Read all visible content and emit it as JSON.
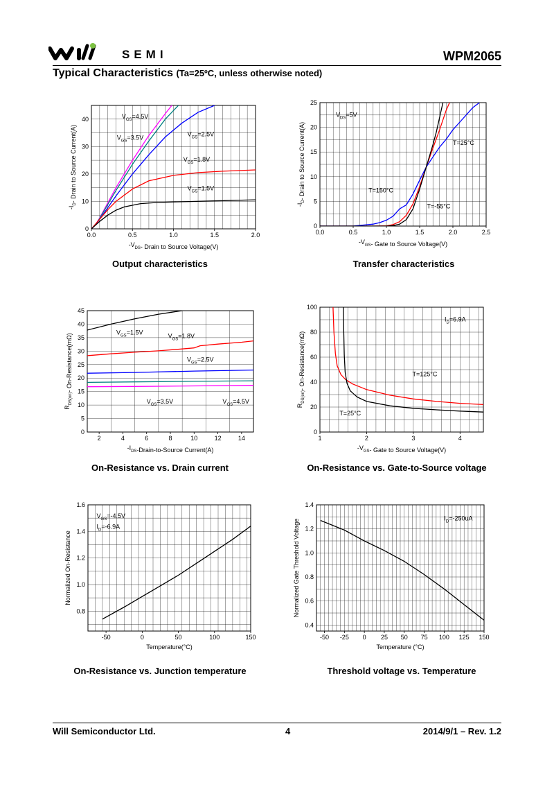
{
  "header": {
    "logo_text": "SEMI",
    "part_number": "WPM2065",
    "title": "Typical Characteristics",
    "title_note": "(Ta=25ºC, unless otherwise noted)"
  },
  "footer": {
    "company": "Will Semiconductor Ltd.",
    "page": "4",
    "date_rev": "2014/9/1 – Rev. 1.2"
  },
  "chart_data": [
    {
      "id": "output",
      "type": "line",
      "title": "Output characteristics",
      "xlabel": "-V_DS- Drain to Source Voltage(V)",
      "ylabel": "-I_D- Drain to Source Current(A)",
      "xlim": [
        0,
        2.0
      ],
      "ylim": [
        0,
        45
      ],
      "xticks": [
        0.0,
        0.5,
        1.0,
        1.5,
        2.0
      ],
      "xtick_labels": [
        "0.0",
        "0.5",
        "1.0",
        "1.5",
        "2.0"
      ],
      "yticks": [
        0,
        10,
        20,
        30,
        40
      ],
      "ytick_labels": [
        "0",
        "10",
        "20",
        "30",
        "40"
      ],
      "grid": true,
      "series": [
        {
          "name": "VGS=4.5V",
          "color": "#ff00ff",
          "x": [
            0,
            0.05,
            0.1,
            0.3,
            0.5,
            0.7,
            0.9,
            0.98
          ],
          "y": [
            0,
            1.5,
            4,
            15,
            25,
            34,
            42,
            45
          ]
        },
        {
          "name": "VGS=3.5V",
          "color": "#008080",
          "x": [
            0,
            0.05,
            0.1,
            0.3,
            0.5,
            0.7,
            0.9,
            1.06
          ],
          "y": [
            0,
            1.5,
            3.8,
            14,
            23.5,
            32,
            40,
            45
          ]
        },
        {
          "name": "VGS=2.5V",
          "color": "#0000ff",
          "x": [
            0,
            0.05,
            0.1,
            0.3,
            0.5,
            0.7,
            0.9,
            1.1,
            1.3,
            1.5
          ],
          "y": [
            0,
            1.5,
            3.5,
            12,
            20,
            27,
            33.5,
            38.5,
            42.5,
            45
          ]
        },
        {
          "name": "VGS=1.8V",
          "color": "#ff0000",
          "x": [
            0,
            0.1,
            0.2,
            0.3,
            0.5,
            0.7,
            1.0,
            1.3,
            1.6,
            2.0
          ],
          "y": [
            0,
            3.5,
            7,
            10,
            14.5,
            17.5,
            19.5,
            20.5,
            21,
            21.5
          ]
        },
        {
          "name": "VGS=1.5V",
          "color": "#000000",
          "x": [
            0,
            0.1,
            0.2,
            0.3,
            0.4,
            0.6,
            0.8,
            1.0,
            1.5,
            2.0
          ],
          "y": [
            0,
            2.7,
            5,
            6.8,
            8,
            9.2,
            9.6,
            9.8,
            10.2,
            10.6
          ]
        }
      ],
      "labels": [
        {
          "text": "VGS=4.5V",
          "x": 0.37,
          "y": 40.2
        },
        {
          "text": "VGS=3.5V",
          "x": 0.31,
          "y": 32.5
        },
        {
          "text": "VGS=2.5V",
          "x": 1.17,
          "y": 33.8
        },
        {
          "text": "VGS=1.8V",
          "x": 1.12,
          "y": 24.5
        },
        {
          "text": "VGS=1.5V",
          "x": 1.17,
          "y": 14.0
        }
      ]
    },
    {
      "id": "transfer",
      "type": "line",
      "title": "Transfer characteristics",
      "xlabel": "-V_GS- Gate to Source Voltage(V)",
      "ylabel": "-I_D- Drain to Source Current(A)",
      "xlim": [
        0,
        2.5
      ],
      "ylim": [
        0,
        25
      ],
      "xticks": [
        0.0,
        0.5,
        1.0,
        1.5,
        2.0,
        2.5
      ],
      "xtick_labels": [
        "0.0",
        "0.5",
        "1.0",
        "1.5",
        "2.0",
        "2.5"
      ],
      "yticks": [
        0,
        5,
        10,
        15,
        20,
        25
      ],
      "ytick_labels": [
        "0",
        "5",
        "10",
        "15",
        "20",
        "25"
      ],
      "grid": true,
      "series": [
        {
          "name": "T=25°C",
          "color": "#ff0000",
          "x": [
            0,
            0.8,
            1.0,
            1.1,
            1.2,
            1.3,
            1.4,
            1.5,
            1.6,
            1.7,
            1.8,
            1.9,
            1.95
          ],
          "y": [
            0,
            0,
            0.05,
            0.3,
            0.9,
            2.2,
            4.5,
            8,
            12,
            15.8,
            19.5,
            23.5,
            25
          ]
        },
        {
          "name": "T=150°C",
          "color": "#0000ff",
          "x": [
            0,
            0.5,
            0.8,
            0.9,
            1.0,
            1.1,
            1.2,
            1.3,
            1.4,
            1.5,
            1.6,
            1.7,
            1.8,
            1.9,
            2.0,
            2.1,
            2.2,
            2.3,
            2.4
          ],
          "y": [
            0,
            0,
            0.4,
            0.7,
            1.2,
            2,
            3.5,
            4.3,
            6.5,
            9.3,
            12,
            14,
            16,
            17.6,
            19.5,
            21,
            22.5,
            24,
            25
          ]
        },
        {
          "name": "T=-55°C",
          "color": "#000000",
          "x": [
            0,
            1.0,
            1.1,
            1.2,
            1.3,
            1.4,
            1.5,
            1.6,
            1.7,
            1.75,
            1.8,
            1.85
          ],
          "y": [
            0,
            0,
            0.1,
            0.4,
            1.3,
            3.5,
            7.5,
            12,
            16.5,
            19,
            22,
            25
          ]
        }
      ],
      "labels": [
        {
          "text": "VDS=5V",
          "x": 0.24,
          "y": 22.1
        },
        {
          "text": "T=25°C",
          "x": 2.0,
          "y": 16.4
        },
        {
          "text": "T=150°C",
          "x": 0.73,
          "y": 6.8
        },
        {
          "text": "T=-55°C",
          "x": 1.61,
          "y": 3.6
        }
      ]
    },
    {
      "id": "ron_id",
      "type": "line",
      "title": "On-Resistance vs. Drain current",
      "xlabel": "-I_DS-Drain-to-Source Current(A)",
      "ylabel": "R_DS(on)- On-Resistance(mΩ)",
      "xlim": [
        1,
        15
      ],
      "ylim": [
        0,
        45
      ],
      "xticks": [
        2,
        4,
        6,
        8,
        10,
        12,
        14
      ],
      "xtick_labels": [
        "2",
        "4",
        "6",
        "8",
        "10",
        "12",
        "14"
      ],
      "yticks": [
        0,
        5,
        10,
        15,
        20,
        25,
        30,
        35,
        40,
        45
      ],
      "ytick_labels": [
        "0",
        "5",
        "10",
        "15",
        "20",
        "25",
        "30",
        "35",
        "40",
        "45"
      ],
      "grid": true,
      "series": [
        {
          "name": "VGS=1.5V",
          "color": "#000000",
          "x": [
            1,
            3,
            5,
            7,
            9
          ],
          "y": [
            37.8,
            40,
            42,
            43.7,
            45
          ]
        },
        {
          "name": "VGS=1.8V",
          "color": "#ff0000",
          "x": [
            1,
            3,
            5,
            7,
            9,
            10,
            10.5,
            12,
            14,
            15
          ],
          "y": [
            28.3,
            29,
            29.6,
            30.1,
            30.8,
            31.2,
            32,
            32.6,
            33.3,
            33.8
          ]
        },
        {
          "name": "VGS=2.5V",
          "color": "#0000ff",
          "x": [
            1,
            5,
            10,
            15
          ],
          "y": [
            21.8,
            22.1,
            22.6,
            23
          ]
        },
        {
          "name": "VGS=3.5V",
          "color": "#008080",
          "x": [
            1,
            5,
            10,
            15
          ],
          "y": [
            18.4,
            18.6,
            18.8,
            19
          ]
        },
        {
          "name": "VGS=4.5V",
          "color": "#ff00ff",
          "x": [
            1,
            5,
            10,
            15
          ],
          "y": [
            16.8,
            16.9,
            17.1,
            17.3
          ]
        }
      ],
      "labels": [
        {
          "text": "VGS=1.5V",
          "x": 3.45,
          "y": 36.1
        },
        {
          "text": "VGS=1.8V",
          "x": 7.8,
          "y": 34.8
        },
        {
          "text": "VGS=2.5V",
          "x": 9.4,
          "y": 26.1
        },
        {
          "text": "VGS=3.5V",
          "x": 6.0,
          "y": 10.5
        },
        {
          "text": "VGS=4.5V",
          "x": 12.4,
          "y": 10.5
        }
      ]
    },
    {
      "id": "ron_vgs",
      "type": "line",
      "title": "On-Resistance vs. Gate-to-Source voltage",
      "xlabel": "-V_GS- Gate to Source Voltage(V)",
      "ylabel": "R_DS(on)- On-Resistance(mΩ)",
      "xlim": [
        1,
        4.5
      ],
      "ylim": [
        0,
        100
      ],
      "xticks": [
        1,
        2,
        3,
        4
      ],
      "xtick_labels": [
        "1",
        "2",
        "3",
        "4"
      ],
      "yticks": [
        0,
        20,
        40,
        60,
        80,
        100
      ],
      "ytick_labels": [
        "0",
        "20",
        "40",
        "60",
        "80",
        "100"
      ],
      "grid": true,
      "series": [
        {
          "name": "T=125°C",
          "color": "#ff0000",
          "x": [
            1.28,
            1.3,
            1.33,
            1.37,
            1.45,
            1.55,
            1.7,
            2.0,
            2.5,
            3.0,
            3.5,
            4.0,
            4.5
          ],
          "y": [
            100,
            80,
            63,
            53,
            46,
            42,
            38.5,
            34,
            29.5,
            26.5,
            24.5,
            23,
            22
          ]
        },
        {
          "name": "T=25°C",
          "color": "#000000",
          "x": [
            1.5,
            1.51,
            1.52,
            1.54,
            1.58,
            1.65,
            1.8,
            2.0,
            2.5,
            3.0,
            3.5,
            4.0,
            4.5
          ],
          "y": [
            100,
            80,
            62,
            48,
            39,
            33,
            28,
            24.5,
            21,
            19,
            17.8,
            16.8,
            16
          ]
        }
      ],
      "labels": [
        {
          "text": "ID=6.9A",
          "x": 3.67,
          "y": 88.7
        },
        {
          "text": "T=125°C",
          "x": 2.98,
          "y": 44.6
        },
        {
          "text": "T=25°C",
          "x": 1.42,
          "y": 13.2
        }
      ]
    },
    {
      "id": "ron_temp",
      "type": "line",
      "title": "On-Resistance vs. Junction temperature",
      "xlabel": "Temperature(°C)",
      "ylabel": "Normalized On-Resistance",
      "xlim": [
        -75,
        150
      ],
      "ylim": [
        0.65,
        1.6
      ],
      "xticks": [
        -50,
        0,
        50,
        100,
        150
      ],
      "xtick_labels": [
        "-50",
        "0",
        "50",
        "100",
        "150"
      ],
      "yticks": [
        0.8,
        1.0,
        1.2,
        1.4,
        1.6
      ],
      "ytick_labels": [
        "0.8",
        "1.0",
        "1.2",
        "1.4",
        "1.6"
      ],
      "grid": true,
      "series": [
        {
          "name": "",
          "color": "#000000",
          "x": [
            -55,
            -25,
            0,
            25,
            50,
            75,
            100,
            125,
            150
          ],
          "y": [
            0.74,
            0.83,
            0.91,
            0.99,
            1.07,
            1.16,
            1.25,
            1.34,
            1.44
          ]
        }
      ],
      "labels": [
        {
          "text": "VGS=-4.5V",
          "x": -63,
          "y": 1.5
        },
        {
          "text": "ID=-6.9A",
          "x": -63,
          "y": 1.42
        }
      ]
    },
    {
      "id": "vth_temp",
      "type": "line",
      "title": "Threshold voltage vs. Temperature",
      "xlabel": "Temperature (°C)",
      "ylabel": "Normalized Gate Threshold Voltage",
      "xlim": [
        -60,
        150
      ],
      "ylim": [
        0.35,
        1.4
      ],
      "xticks": [
        -50,
        -25,
        0,
        25,
        50,
        75,
        100,
        125,
        150
      ],
      "xtick_labels": [
        "-50",
        "-25",
        "0",
        "25",
        "50",
        "75",
        "100",
        "125",
        "150"
      ],
      "yticks": [
        0.4,
        0.6,
        0.8,
        1.0,
        1.2,
        1.4
      ],
      "ytick_labels": [
        "0.4",
        "0.6",
        "0.8",
        "1.0",
        "1.2",
        "1.4"
      ],
      "grid": true,
      "series": [
        {
          "name": "",
          "color": "#000000",
          "x": [
            -55,
            -25,
            0,
            25,
            50,
            75,
            100,
            125,
            150
          ],
          "y": [
            1.27,
            1.19,
            1.1,
            1.02,
            0.93,
            0.82,
            0.7,
            0.57,
            0.44
          ]
        }
      ],
      "labels": [
        {
          "text": "ID=-250uA",
          "x": 100,
          "y": 1.27
        }
      ]
    }
  ]
}
